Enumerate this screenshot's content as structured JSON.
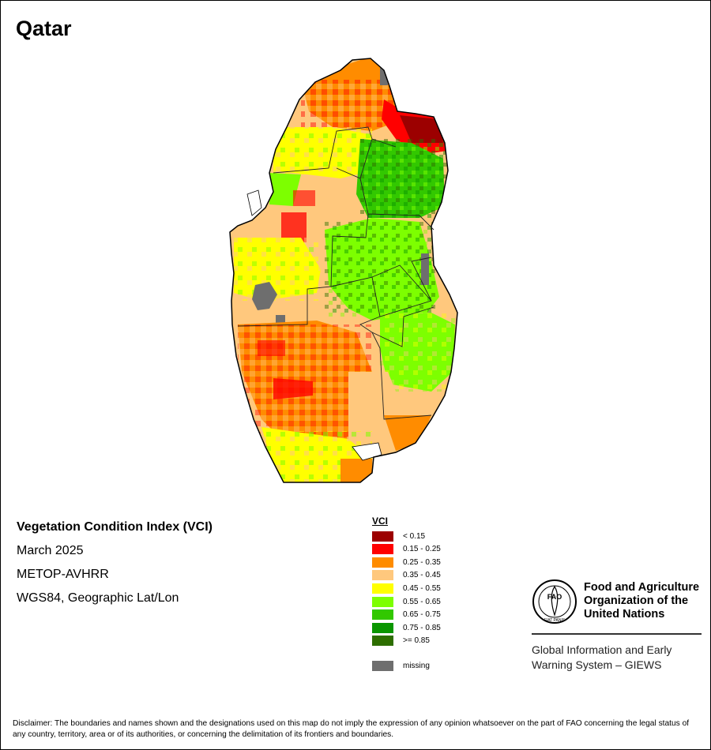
{
  "title": "Qatar",
  "info": {
    "index_name": "Vegetation Condition Index (VCI)",
    "period": "March 2025",
    "sensor": "METOP-AVHRR",
    "projection": "WGS84, Geographic Lat/Lon"
  },
  "legend": {
    "title": "VCI",
    "classes": [
      {
        "label": "< 0.15",
        "color": "#9c0000"
      },
      {
        "label": "0.15 - 0.25",
        "color": "#ff0000"
      },
      {
        "label": "0.25 - 0.35",
        "color": "#ff8c00"
      },
      {
        "label": "0.35 - 0.45",
        "color": "#ffc87d"
      },
      {
        "label": "0.45 - 0.55",
        "color": "#ffff00"
      },
      {
        "label": "0.55 - 0.65",
        "color": "#7dff00"
      },
      {
        "label": "0.65 - 0.75",
        "color": "#32c800"
      },
      {
        "label": "0.75 - 0.85",
        "color": "#0a9600"
      },
      {
        "label": ">= 0.85",
        "color": "#2d6e00"
      }
    ],
    "missing": {
      "label": "missing",
      "color": "#6e6e6e"
    }
  },
  "fao": {
    "logo_text": "FAO",
    "logo_motto": "FIAT PANIS",
    "name_lines": [
      "Food and Agriculture",
      "Organization of the",
      "United Nations"
    ],
    "giews_lines": [
      "Global Information and Early",
      "Warning System – GIEWS"
    ]
  },
  "disclaimer": "Disclaimer: The boundaries and names shown and the designations used on this map do not imply the expression of any opinion whatsoever on the part of FAO concerning the legal status of any country, territory, area or of its authorities, or concerning the delimitation of its frontiers and boundaries."
}
